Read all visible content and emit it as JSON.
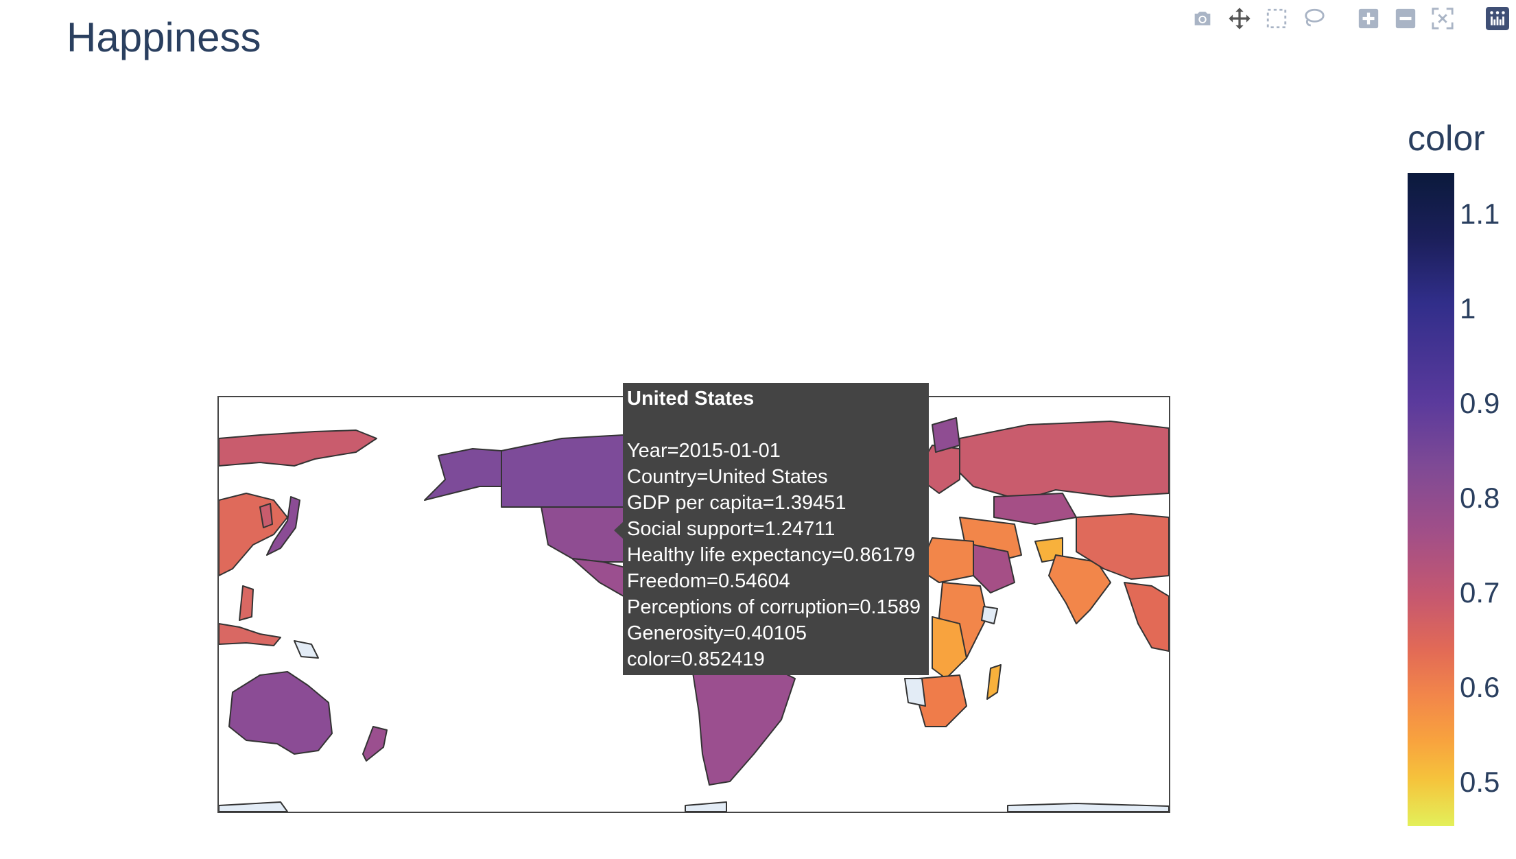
{
  "title": "Happiness",
  "modebar": {
    "buttons": [
      "camera-icon",
      "pan-icon",
      "box-select-icon",
      "lasso-icon",
      "zoom-in-icon",
      "zoom-out-icon",
      "reset-icon",
      "plotly-logo-icon"
    ]
  },
  "colorbar": {
    "title": "color",
    "ticks": [
      "1.1",
      "1",
      "0.9",
      "0.8",
      "0.7",
      "0.6",
      "0.5"
    ],
    "range": [
      0.46,
      1.15
    ],
    "colorscale": "plasma-like"
  },
  "tooltip": {
    "title": "United States",
    "lines": [
      "Year=2015-01-01",
      "Country=United States",
      "GDP per capita=1.39451",
      "Social support=1.24711",
      "Healthy life expectancy=0.86179",
      "Freedom=0.54604",
      "Perceptions of corruption=0.1589",
      "Generosity=0.40105",
      "color=0.852419"
    ]
  },
  "colors": {
    "title": "#2a3f5f",
    "tooltip_bg": "#444444",
    "border": "#444444"
  }
}
